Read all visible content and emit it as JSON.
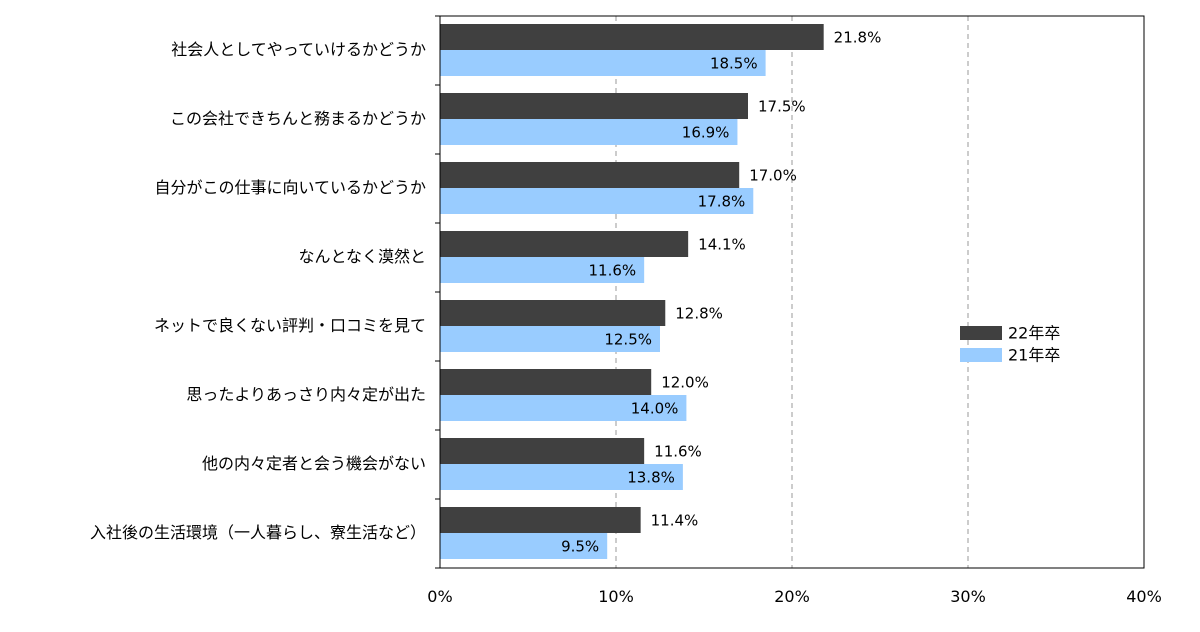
{
  "chart_data": {
    "type": "bar",
    "orientation": "horizontal",
    "categories": [
      "社会人としてやっていけるかどうか",
      "この会社できちんと務まるかどうか",
      "自分がこの仕事に向いているかどうか",
      "なんとなく漠然と",
      "ネットで良くない評判・口コミを見て",
      "思ったよりあっさり内々定が出た",
      "他の内々定者と会う機会がない",
      "入社後の生活環境（一人暮らし、寮生活など）"
    ],
    "series": [
      {
        "name": "22年卒",
        "color": "#404040",
        "values": [
          21.8,
          17.5,
          17.0,
          14.1,
          12.8,
          12.0,
          11.6,
          11.4
        ],
        "labels": [
          "21.8%",
          "17.5%",
          "17.0%",
          "14.1%",
          "12.8%",
          "12.0%",
          "11.6%",
          "11.4%"
        ]
      },
      {
        "name": "21年卒",
        "color": "#99ccff",
        "values": [
          18.5,
          16.9,
          17.8,
          11.6,
          12.5,
          14.0,
          13.8,
          9.5
        ],
        "labels": [
          "18.5%",
          "16.9%",
          "17.8%",
          "11.6%",
          "12.5%",
          "14.0%",
          "13.8%",
          "9.5%"
        ]
      }
    ],
    "xlim": [
      0,
      40
    ],
    "xticks": [
      0,
      10,
      20,
      30,
      40
    ],
    "xtick_labels": [
      "0%",
      "10%",
      "20%",
      "30%",
      "40%"
    ],
    "grid": "vertical dashed",
    "legend_position": "right"
  }
}
